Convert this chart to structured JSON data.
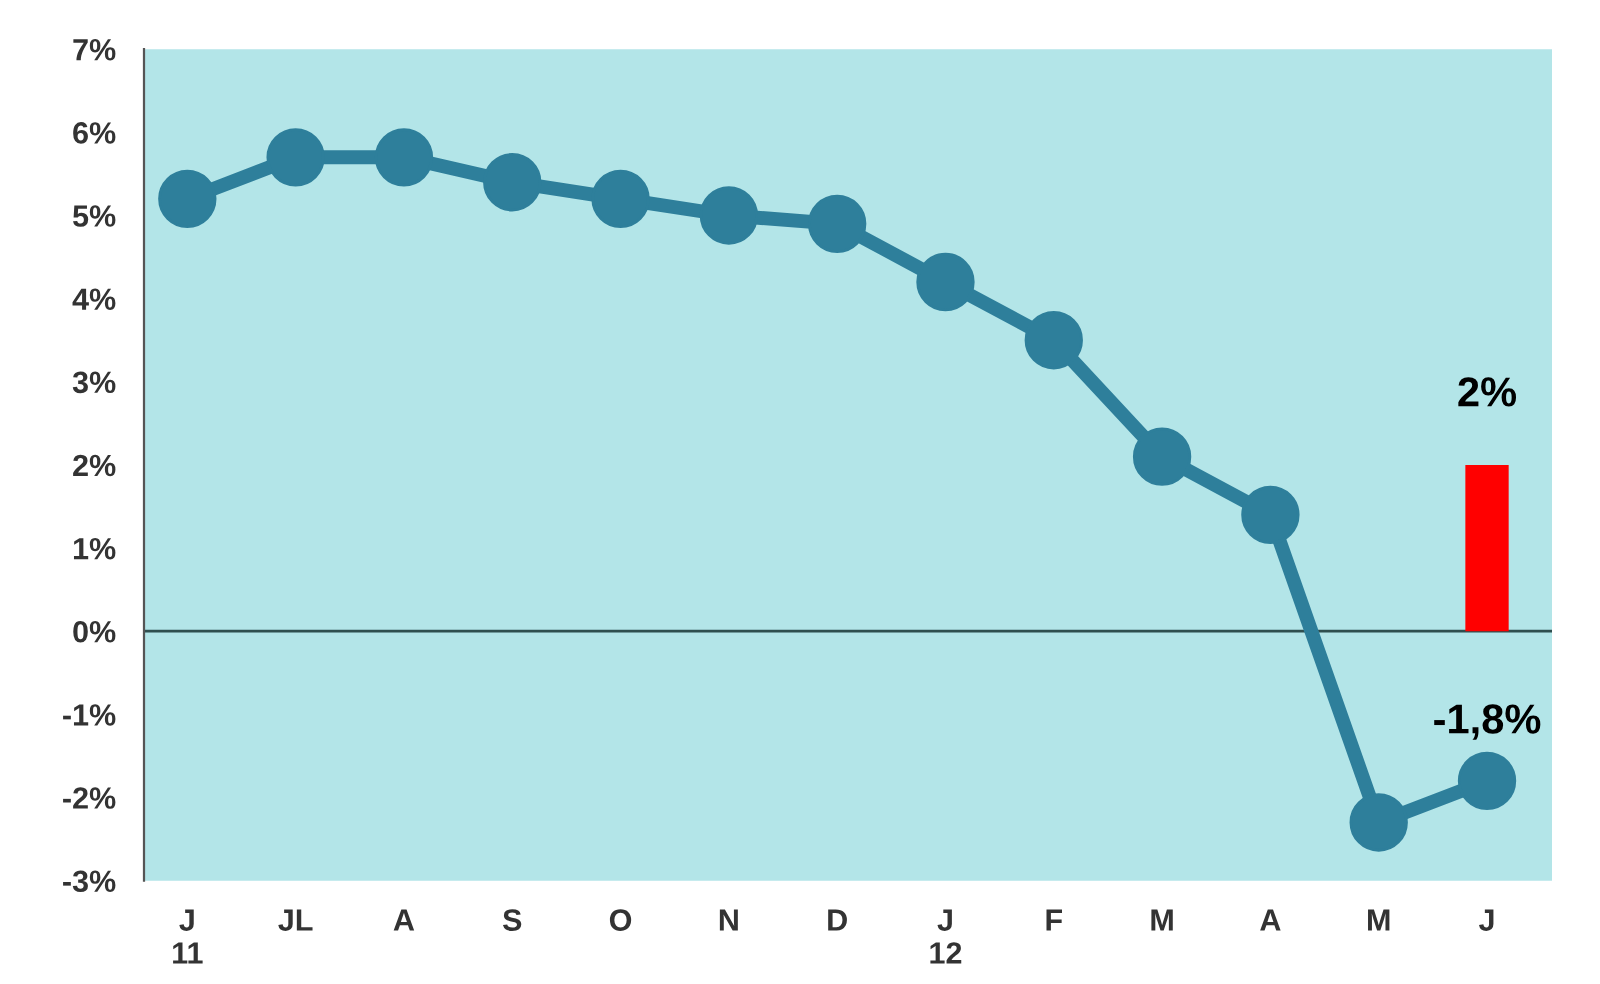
{
  "chart_data": {
    "type": "line",
    "categories": [
      "J\n11",
      "JL",
      "A",
      "S",
      "O",
      "N",
      "D",
      "J\n12",
      "F",
      "M",
      "A",
      "M",
      "J"
    ],
    "series": [
      {
        "color": "#2e7f9b",
        "values": [
          5.2,
          5.7,
          5.7,
          5.4,
          5.2,
          5.0,
          4.9,
          4.2,
          3.5,
          2.1,
          1.4,
          -2.3,
          -1.8
        ],
        "value_labels": [
          null,
          null,
          null,
          null,
          null,
          null,
          null,
          null,
          null,
          null,
          null,
          null,
          "-1,8%"
        ]
      },
      {
        "type": "bar",
        "color": "#ff0000",
        "values": [
          null,
          null,
          null,
          null,
          null,
          null,
          null,
          null,
          null,
          null,
          null,
          null,
          2
        ],
        "value_labels": [
          null,
          null,
          null,
          null,
          null,
          null,
          null,
          null,
          null,
          null,
          null,
          null,
          "2%"
        ]
      }
    ],
    "ylim": [
      -3,
      7
    ],
    "yticks": [
      {
        "value": -3,
        "label": "-3%"
      },
      {
        "value": -2,
        "label": "-2%"
      },
      {
        "value": -1,
        "label": "-1%"
      },
      {
        "value": 0,
        "label": "0%"
      },
      {
        "value": 1,
        "label": "1%"
      },
      {
        "value": 2,
        "label": "2%"
      },
      {
        "value": 3,
        "label": "3%"
      },
      {
        "value": 4,
        "label": "4%"
      },
      {
        "value": 5,
        "label": "5%"
      },
      {
        "value": 6,
        "label": "6%"
      },
      {
        "value": 7,
        "label": "7%"
      }
    ],
    "ref_lines": [
      {
        "axis": "y",
        "value": 0,
        "color": "#2f4f4f",
        "line_style": "solid"
      }
    ],
    "marker": "circle",
    "line_style": "solid",
    "grid": false,
    "legend": false
  }
}
